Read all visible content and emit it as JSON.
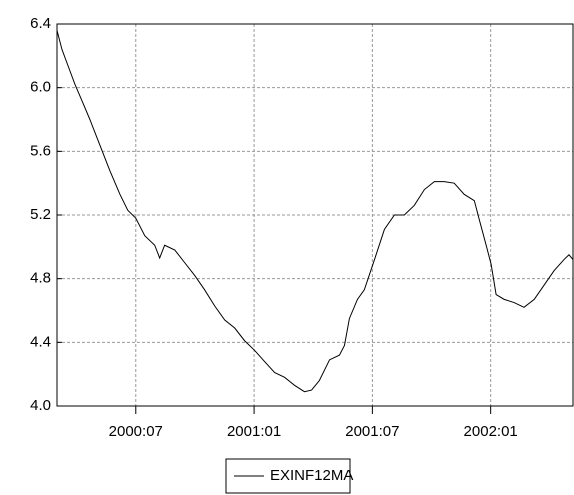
{
  "chart_data": {
    "type": "line",
    "x": [
      2000.167,
      2000.188,
      2000.213,
      2000.243,
      2000.272,
      2000.306,
      2000.348,
      2000.39,
      2000.433,
      2000.466,
      2000.5,
      2000.538,
      2000.58,
      2000.601,
      2000.622,
      2000.665,
      2000.707,
      2000.749,
      2000.791,
      2000.833,
      2000.876,
      2000.918,
      2000.96,
      2001.002,
      2001.044,
      2001.087,
      2001.129,
      2001.171,
      2001.213,
      2001.243,
      2001.276,
      2001.319,
      2001.361,
      2001.382,
      2001.403,
      2001.437,
      2001.466,
      2001.509,
      2001.551,
      2001.593,
      2001.635,
      2001.677,
      2001.72,
      2001.762,
      2001.804,
      2001.846,
      2001.888,
      2001.931,
      2001.952,
      2001.981,
      2002.002,
      2002.023,
      2002.057,
      2002.099,
      2002.141,
      2002.184,
      2002.226,
      2002.268,
      2002.31,
      2002.331,
      2002.348
    ],
    "series": [
      {
        "name": "EXINF12MA",
        "color": "#000000",
        "values": [
          6.36,
          6.24,
          6.14,
          6.02,
          5.92,
          5.8,
          5.64,
          5.48,
          5.33,
          5.23,
          5.18,
          5.07,
          5.01,
          4.93,
          5.01,
          4.98,
          4.9,
          4.82,
          4.73,
          4.63,
          4.54,
          4.49,
          4.41,
          4.35,
          4.28,
          4.21,
          4.18,
          4.13,
          4.09,
          4.1,
          4.16,
          4.29,
          4.32,
          4.38,
          4.55,
          4.67,
          4.73,
          4.92,
          5.11,
          5.2,
          5.2,
          5.26,
          5.36,
          5.41,
          5.41,
          5.4,
          5.33,
          5.29,
          5.17,
          5.01,
          4.89,
          4.7,
          4.67,
          4.65,
          4.62,
          4.67,
          4.76,
          4.85,
          4.92,
          4.95,
          4.92
        ]
      }
    ],
    "xlim": [
      2000.167,
      2002.348
    ],
    "xticks": [
      {
        "value": 2000.5,
        "label": "2000:07"
      },
      {
        "value": 2001.0,
        "label": "2001:01"
      },
      {
        "value": 2001.5,
        "label": "2001:07"
      },
      {
        "value": 2002.0,
        "label": "2002:01"
      }
    ],
    "ylim": [
      4.0,
      6.4
    ],
    "yticks": [
      {
        "value": 4.0,
        "label": "4.0"
      },
      {
        "value": 4.4,
        "label": "4.4"
      },
      {
        "value": 4.8,
        "label": "4.8"
      },
      {
        "value": 5.2,
        "label": "5.2"
      },
      {
        "value": 5.6,
        "label": "5.6"
      },
      {
        "value": 6.0,
        "label": "6.0"
      },
      {
        "value": 6.4,
        "label": "6.4"
      }
    ],
    "grid": true,
    "legend": "bottom"
  }
}
